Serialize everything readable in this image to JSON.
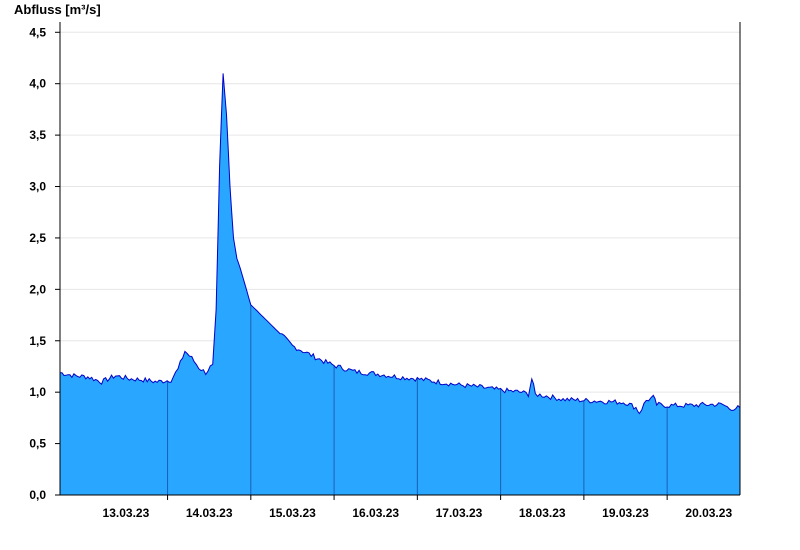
{
  "chart_data": {
    "type": "area",
    "title": "",
    "ylabel": "Abfluss [m³/s]",
    "xlabel": "",
    "ylim": [
      0,
      4.6
    ],
    "yticks": [
      "0,0",
      "0,5",
      "1,0",
      "1,5",
      "2,0",
      "2,5",
      "3,0",
      "3,5",
      "4,0",
      "4,5"
    ],
    "ytick_values": [
      0,
      0.5,
      1.0,
      1.5,
      2.0,
      2.5,
      3.0,
      3.5,
      4.0,
      4.5
    ],
    "xlim": [
      "12.03.2023 17:00",
      "20.03.2023 21:00"
    ],
    "xticks": [
      "13.03.23",
      "14.03.23",
      "15.03.23",
      "16.03.23",
      "17.03.23",
      "18.03.23",
      "19.03.23",
      "20.03.23"
    ],
    "grid": "horizontal",
    "colors": {
      "fill": "#29a6ff",
      "line": "#0000c8",
      "day_line": "#1a5fb4",
      "grid": "#e6e6e6"
    },
    "series": [
      {
        "x": [
          "12.03.2023 17:00",
          "12.03.2023 21:00",
          "13.03.2023 01:00",
          "13.03.2023 05:00",
          "13.03.2023 09:00",
          "13.03.2023 13:00",
          "13.03.2023 17:00",
          "13.03.2023 21:00",
          "14.03.2023 01:00",
          "14.03.2023 03:00",
          "14.03.2023 05:00",
          "14.03.2023 07:00",
          "14.03.2023 09:00",
          "14.03.2023 11:00",
          "14.03.2023 13:00",
          "14.03.2023 14:00",
          "14.03.2023 15:00",
          "14.03.2023 16:00",
          "14.03.2023 17:00",
          "14.03.2023 18:00",
          "14.03.2023 19:00",
          "14.03.2023 20:00",
          "14.03.2023 21:00",
          "15.03.2023 00:00",
          "15.03.2023 03:00",
          "15.03.2023 06:00",
          "15.03.2023 09:00",
          "15.03.2023 12:00",
          "15.03.2023 15:00",
          "15.03.2023 18:00",
          "15.03.2023 21:00",
          "16.03.2023 00:00",
          "16.03.2023 06:00",
          "16.03.2023 12:00",
          "16.03.2023 18:00",
          "17.03.2023 00:00",
          "17.03.2023 06:00",
          "17.03.2023 12:00",
          "17.03.2023 18:00",
          "18.03.2023 00:00",
          "18.03.2023 06:00",
          "18.03.2023 08:00",
          "18.03.2023 09:00",
          "18.03.2023 10:00",
          "18.03.2023 12:00",
          "18.03.2023 18:00",
          "19.03.2023 00:00",
          "19.03.2023 06:00",
          "19.03.2023 12:00",
          "19.03.2023 15:00",
          "19.03.2023 16:00",
          "19.03.2023 18:00",
          "19.03.2023 20:00",
          "19.03.2023 21:00",
          "20.03.2023 00:00",
          "20.03.2023 06:00",
          "20.03.2023 12:00",
          "20.03.2023 16:00",
          "20.03.2023 18:00",
          "20.03.2023 21:00"
        ],
        "y": [
          1.19,
          1.16,
          1.15,
          1.1,
          1.16,
          1.13,
          1.12,
          1.1,
          1.12,
          1.22,
          1.4,
          1.33,
          1.24,
          1.19,
          1.27,
          1.8,
          3.2,
          4.1,
          3.7,
          3.0,
          2.5,
          2.3,
          2.2,
          1.85,
          1.75,
          1.65,
          1.55,
          1.45,
          1.4,
          1.35,
          1.3,
          1.26,
          1.2,
          1.18,
          1.15,
          1.13,
          1.1,
          1.07,
          1.05,
          1.02,
          1.0,
          0.98,
          1.13,
          0.98,
          0.97,
          0.93,
          0.92,
          0.91,
          0.9,
          0.85,
          0.8,
          0.92,
          0.95,
          0.88,
          0.87,
          0.87,
          0.88,
          0.88,
          0.84,
          0.85
        ]
      }
    ]
  }
}
